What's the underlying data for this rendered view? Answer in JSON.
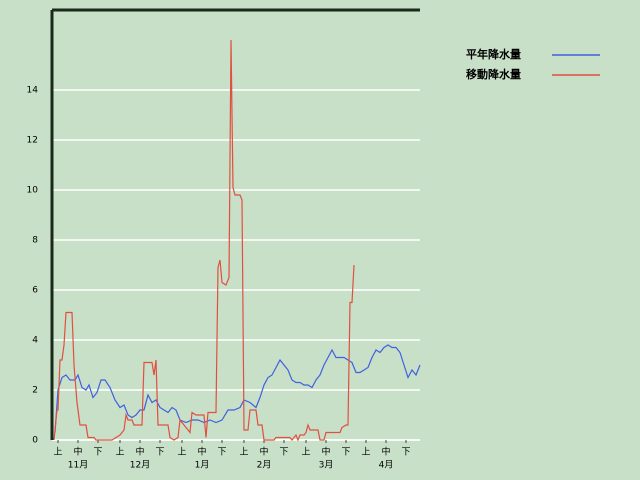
{
  "chart_data": {
    "type": "line",
    "series": [
      {
        "name": "平年降水量",
        "color": "#4060e0",
        "x": [
          1.5,
          3,
          5,
          7,
          9,
          11.5,
          13,
          15,
          17,
          18.5,
          20.5,
          22.5,
          24.5,
          26.5,
          29,
          31.5,
          34,
          36,
          38,
          40,
          42,
          44,
          46,
          48,
          50,
          52,
          54,
          56,
          58,
          60,
          62,
          64,
          67,
          70,
          73,
          76,
          79,
          82,
          85,
          88,
          91,
          94,
          96,
          99,
          102,
          104,
          106,
          108,
          110,
          112,
          114,
          116,
          118,
          120,
          122,
          124,
          126,
          128,
          130,
          132,
          134,
          136,
          138,
          140,
          142,
          144,
          146,
          148,
          150,
          152,
          154,
          156,
          158,
          160,
          162,
          164,
          166,
          168,
          170,
          172,
          174,
          176,
          178,
          180,
          182,
          184
        ],
        "values": [
          0.3,
          2.0,
          2.5,
          2.6,
          2.4,
          2.4,
          2.6,
          2.1,
          2.0,
          2.2,
          1.7,
          1.9,
          2.4,
          2.4,
          2.1,
          1.6,
          1.3,
          1.4,
          1.0,
          0.9,
          1.0,
          1.2,
          1.2,
          1.8,
          1.5,
          1.6,
          1.3,
          1.2,
          1.1,
          1.3,
          1.2,
          0.8,
          0.7,
          0.8,
          0.8,
          0.7,
          0.8,
          0.7,
          0.8,
          1.2,
          1.2,
          1.3,
          1.6,
          1.5,
          1.3,
          1.7,
          2.2,
          2.5,
          2.6,
          2.9,
          3.2,
          3.0,
          2.8,
          2.4,
          2.3,
          2.3,
          2.2,
          2.2,
          2.1,
          2.4,
          2.6,
          3.0,
          3.3,
          3.6,
          3.3,
          3.3,
          3.3,
          3.2,
          3.1,
          2.7,
          2.7,
          2.8,
          2.9,
          3.3,
          3.6,
          3.5,
          3.7,
          3.8,
          3.7,
          3.7,
          3.5,
          3.0,
          2.5,
          2.8,
          2.6,
          3.0
        ]
      },
      {
        "name": "移動降水量",
        "color": "#e05040",
        "x": [
          1,
          2.5,
          3,
          4,
          5,
          6,
          7,
          10,
          11,
          12.5,
          14,
          17,
          18,
          21,
          22,
          30,
          32,
          34,
          36,
          37,
          38,
          40,
          41,
          45,
          46,
          50,
          51,
          52,
          53,
          58,
          59,
          61,
          63,
          64,
          66,
          69,
          70,
          72,
          76,
          77,
          78,
          82,
          83,
          84,
          85,
          87,
          88.5,
          89.5,
          90.5,
          91.5,
          94,
          95,
          96,
          98,
          99,
          102,
          103,
          105,
          106,
          111,
          112,
          119,
          120,
          121,
          122,
          123,
          124,
          126,
          127,
          128,
          129,
          133,
          134,
          136,
          137,
          144,
          145,
          147,
          148,
          149,
          150,
          151
        ],
        "values": [
          0,
          1.2,
          1.2,
          3.2,
          3.2,
          3.8,
          5.1,
          5.1,
          3.0,
          1.5,
          0.6,
          0.6,
          0.1,
          0.1,
          0,
          0,
          0.1,
          0.2,
          0.4,
          1.0,
          0.8,
          0.8,
          0.6,
          0.6,
          3.1,
          3.1,
          2.6,
          3.2,
          0.6,
          0.6,
          0.1,
          0,
          0.1,
          0.8,
          0.6,
          0.3,
          1.1,
          1.0,
          1.0,
          0.1,
          1.1,
          1.1,
          6.9,
          7.2,
          6.3,
          6.2,
          6.5,
          16.0,
          10.1,
          9.8,
          9.8,
          9.6,
          0.4,
          0.4,
          1.2,
          1.2,
          0.6,
          0.6,
          0,
          0,
          0.1,
          0.1,
          0,
          0.1,
          0.2,
          0,
          0.2,
          0.2,
          0.3,
          0.6,
          0.4,
          0.4,
          0,
          0,
          0.3,
          0.3,
          0.5,
          0.6,
          0.6,
          5.5,
          5.5,
          7.0
        ]
      }
    ],
    "xlim": [
      0,
      184
    ],
    "xticks": [
      {
        "value": 3,
        "label": "上"
      },
      {
        "value": 13,
        "label": "中"
      },
      {
        "value": 23,
        "label": "下"
      },
      {
        "value": 34,
        "label": "上"
      },
      {
        "value": 44,
        "label": "中"
      },
      {
        "value": 54,
        "label": "下"
      },
      {
        "value": 65,
        "label": "上"
      },
      {
        "value": 75,
        "label": "中"
      },
      {
        "value": 85,
        "label": "下"
      },
      {
        "value": 96,
        "label": "上"
      },
      {
        "value": 106,
        "label": "中"
      },
      {
        "value": 116,
        "label": "下"
      },
      {
        "value": 127,
        "label": "上"
      },
      {
        "value": 137,
        "label": "中"
      },
      {
        "value": 147,
        "label": "下"
      },
      {
        "value": 157,
        "label": "上"
      },
      {
        "value": 167,
        "label": "中"
      },
      {
        "value": 177,
        "label": "下"
      }
    ],
    "months": [
      "11月",
      "12月",
      "1月",
      "2月",
      "3月",
      "4月"
    ],
    "ylim": [
      0,
      17.2
    ],
    "yticks": [
      0,
      2,
      4,
      6,
      8,
      10,
      12,
      14
    ],
    "grid": true
  }
}
